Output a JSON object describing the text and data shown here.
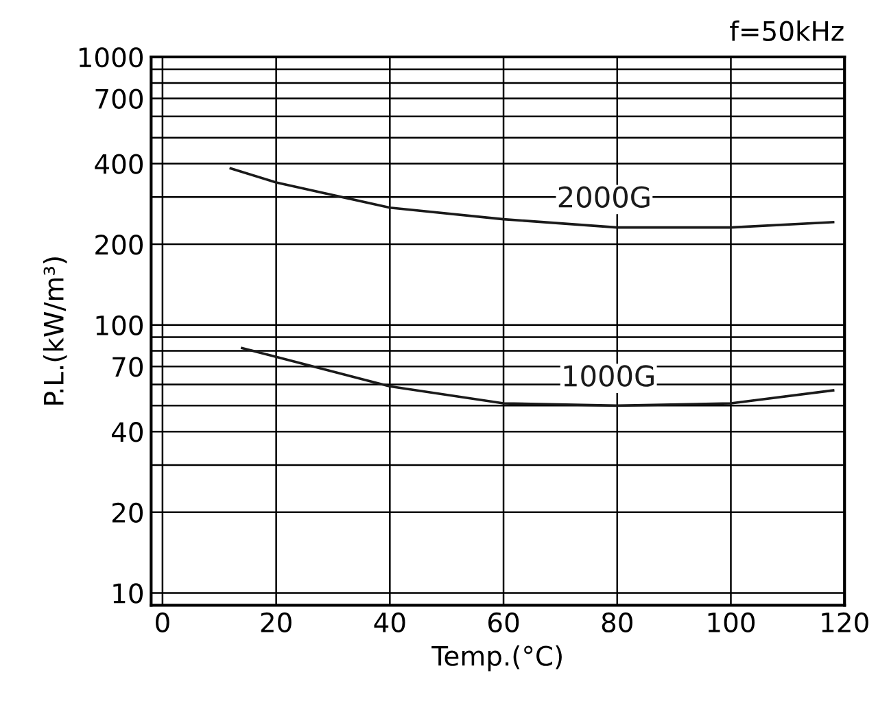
{
  "chart_data": {
    "type": "line",
    "xlabel": "Temp.(°C)",
    "ylabel": "P.L.(kW/m³)",
    "annotations": [
      "f=50kHz"
    ],
    "series": [
      {
        "name": "2000G",
        "color": "#1a1a1a",
        "x": [
          12,
          20,
          40,
          60,
          80,
          100,
          118
        ],
        "values": [
          384,
          340,
          274,
          248,
          231,
          231,
          242
        ]
      },
      {
        "name": "1000G",
        "color": "#1a1a1a",
        "x": [
          14,
          20,
          40,
          60,
          80,
          100,
          118
        ],
        "values": [
          82,
          76,
          59,
          51,
          50,
          51,
          57
        ]
      }
    ],
    "log": "y",
    "xlim": [
      -2,
      120
    ],
    "xticks": [
      0,
      20,
      40,
      60,
      80,
      100,
      120
    ],
    "ylim": [
      9,
      1000
    ],
    "yticks": [
      10,
      20,
      {
        "value": 30,
        "label": null
      },
      40,
      {
        "value": 50,
        "label": null
      },
      {
        "value": 60,
        "label": null
      },
      70,
      {
        "value": 80,
        "label": null
      },
      {
        "value": 90,
        "label": null
      },
      100,
      200,
      {
        "value": 300,
        "label": null
      },
      400,
      {
        "value": 500,
        "label": null
      },
      {
        "value": 600,
        "label": null
      },
      700,
      {
        "value": 800,
        "label": null
      },
      {
        "value": 900,
        "label": null
      },
      1000
    ],
    "grid": true,
    "marker": "none",
    "line_style": "solid"
  }
}
